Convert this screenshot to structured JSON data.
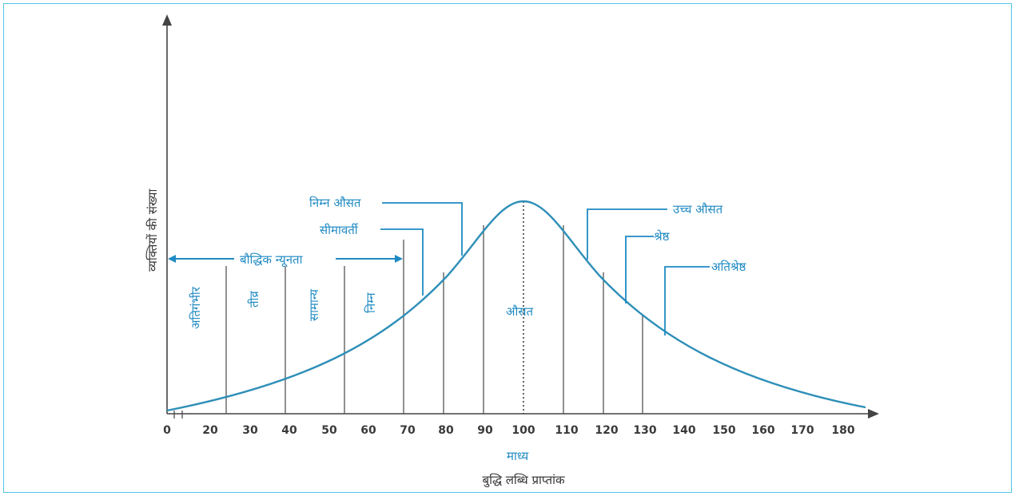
{
  "figure": {
    "y_axis_label": "व्यक्तियों की संख्या",
    "x_axis_label": "बुद्धि लब्धि प्राप्तांक",
    "mean_label": "माध्य",
    "x_ticks": [
      "0",
      "20",
      "30",
      "40",
      "50",
      "60",
      "70",
      "80",
      "90",
      "100",
      "110",
      "120",
      "130",
      "140",
      "150",
      "160",
      "170",
      "180"
    ],
    "categories": {
      "profound": "अतिगंभीर",
      "severe": "तीव्र",
      "moderate": "सामान्य",
      "mild": "निम्न",
      "intellectual_disability": "बौद्धिक न्यूनता",
      "borderline": "सीमावर्ती",
      "low_average": "निम्न औसत",
      "average": "औसत",
      "high_average": "उच्च औसत",
      "superior": "श्रेष्ठ",
      "very_superior": "अतिश्रेष्ठ"
    },
    "colors": {
      "curve": "#2e8fb8",
      "label": "#1f8ac2",
      "axis": "#444444",
      "frame": "#58c4e8"
    }
  }
}
